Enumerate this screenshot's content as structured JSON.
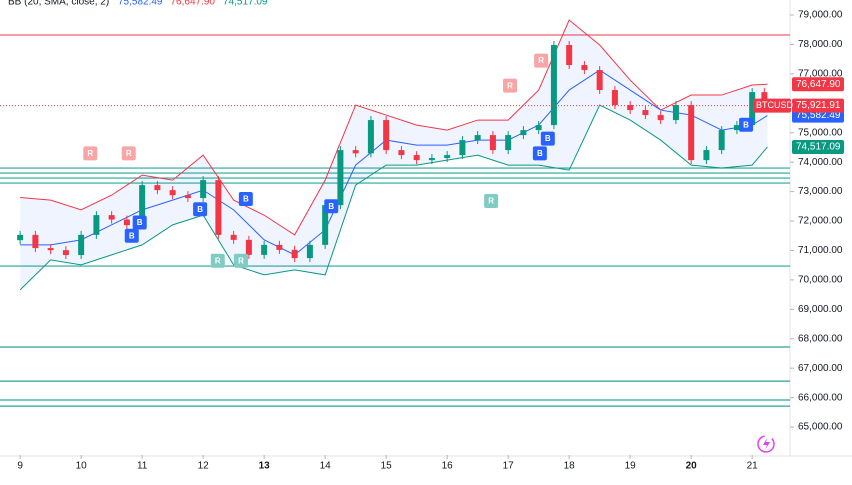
{
  "chart_data": {
    "type": "candlestick",
    "indicator": {
      "label": "BB (20, SMA, close, 2)",
      "values": [
        {
          "value": 75582.49,
          "label": "75,582.49",
          "color": "#2962ff"
        },
        {
          "value": 76647.9,
          "label": "76,647.90",
          "color": "#f23645"
        },
        {
          "value": 74517.09,
          "label": "74,517.09",
          "color": "#089981"
        }
      ]
    },
    "symbol": "BTCUSD",
    "last_price": {
      "value": 75921.91,
      "label": "75,921.91"
    },
    "up_color": "#089981",
    "down_color": "#f23645",
    "x": [
      8.75,
      9.0,
      9.25,
      9.5,
      9.75,
      10.0,
      10.25,
      10.5,
      10.75,
      11.0,
      11.25,
      11.5,
      11.75,
      12.0,
      12.25,
      12.5,
      12.75,
      13.0,
      13.25,
      13.5,
      13.75,
      14.0,
      14.25,
      14.5,
      14.75,
      15.0,
      15.25,
      15.5,
      15.75,
      16.0,
      16.25,
      16.5,
      16.75,
      17.0,
      17.25,
      17.5,
      17.75,
      18.0,
      18.25,
      18.5,
      18.75,
      19.0,
      19.25,
      19.5,
      19.75,
      20.0,
      20.25,
      20.5,
      20.75,
      21.0,
      21.2
    ],
    "close": [
      71350,
      71530,
      71080,
      71010,
      70845,
      71530,
      72200,
      72050,
      71860,
      73220,
      73050,
      72880,
      72780,
      73390,
      71530,
      71360,
      70850,
      71190,
      71020,
      70740,
      71190,
      72540,
      74410,
      74300,
      75430,
      74410,
      74240,
      74070,
      74140,
      74240,
      74750,
      74920,
      74410,
      74920,
      75090,
      75260,
      77980,
      77300,
      77130,
      76450,
      75940,
      75770,
      75600,
      75430,
      75940,
      74070,
      74410,
      75090,
      75260,
      76380,
      75921.91
    ],
    "bands": {
      "x": [
        9,
        9.5,
        10,
        10.5,
        11,
        11.5,
        12,
        12.5,
        13,
        13.5,
        14,
        14.5,
        15,
        15.5,
        16,
        16.5,
        17,
        17.5,
        18,
        18.5,
        19,
        19.5,
        20,
        20.5,
        21,
        21.25
      ],
      "upper": [
        72800,
        72710,
        72380,
        72880,
        73560,
        73390,
        74240,
        72710,
        72200,
        71530,
        73390,
        75940,
        75600,
        75260,
        75090,
        75430,
        75430,
        76450,
        78830,
        77980,
        76790,
        75770,
        76280,
        76280,
        76620,
        76647.9
      ],
      "basis": [
        71190,
        71190,
        71360,
        71870,
        72380,
        72710,
        73050,
        72380,
        71360,
        70850,
        71700,
        73900,
        74750,
        74580,
        74580,
        74750,
        74750,
        75260,
        76450,
        77130,
        76450,
        75770,
        75600,
        75090,
        75260,
        75582.49
      ],
      "lower": [
        69660,
        70680,
        70510,
        70850,
        71190,
        71870,
        72200,
        70510,
        70170,
        70340,
        70170,
        73220,
        73900,
        73900,
        74070,
        74240,
        73900,
        73900,
        73730,
        75940,
        75430,
        74750,
        73900,
        73800,
        73900,
        74517.09
      ],
      "upper_color": "#f23645",
      "basis_color": "#2962ff",
      "lower_color": "#089981"
    },
    "levels": [
      73800,
      73630,
      73460,
      73290,
      70470,
      67720,
      66560,
      65920,
      65710
    ],
    "level_color": "#26a69a",
    "resistance": 78320,
    "resistance_color": "#f23645",
    "signals": [
      {
        "label": "R",
        "x": 10.15,
        "y": 74300,
        "color": "#f7a5a5"
      },
      {
        "label": "R",
        "x": 10.78,
        "y": 74300,
        "color": "#f7a5a5"
      },
      {
        "label": "R",
        "x": 17.03,
        "y": 76600,
        "color": "#f7a5a5"
      },
      {
        "label": "R",
        "x": 17.54,
        "y": 77450,
        "color": "#f7a5a5"
      },
      {
        "label": "B",
        "x": 10.83,
        "y": 71500,
        "color": "#2962ff"
      },
      {
        "label": "B",
        "x": 10.96,
        "y": 71950,
        "color": "#2962ff"
      },
      {
        "label": "B",
        "x": 11.95,
        "y": 72400,
        "color": "#2962ff"
      },
      {
        "label": "B",
        "x": 12.7,
        "y": 72750,
        "color": "#2962ff"
      },
      {
        "label": "R",
        "x": 12.24,
        "y": 70650,
        "color": "#80cbc4"
      },
      {
        "label": "R",
        "x": 12.62,
        "y": 70650,
        "color": "#80cbc4"
      },
      {
        "label": "B",
        "x": 14.1,
        "y": 72500,
        "color": "#2962ff"
      },
      {
        "label": "R",
        "x": 16.72,
        "y": 72680,
        "color": "#80cbc4"
      },
      {
        "label": "B",
        "x": 17.52,
        "y": 74300,
        "color": "#2962ff"
      },
      {
        "label": "B",
        "x": 17.65,
        "y": 74800,
        "color": "#2962ff"
      },
      {
        "label": "B",
        "x": 20.9,
        "y": 75270,
        "color": "#2962ff"
      }
    ],
    "xlim": [
      8.67,
      21.62
    ],
    "xticks": [
      9,
      10,
      11,
      12,
      13,
      14,
      15,
      16,
      17,
      18,
      19,
      20,
      21
    ],
    "bold_xticks": [
      13,
      20
    ],
    "ylim": [
      64050,
      79510
    ],
    "yticks": [
      {
        "value": 65000,
        "label": "65,000.00"
      },
      {
        "value": 66000,
        "label": "66,000.00"
      },
      {
        "value": 67000,
        "label": "67,000.00"
      },
      {
        "value": 68000,
        "label": "68,000.00"
      },
      {
        "value": 69000,
        "label": "69,000.00"
      },
      {
        "value": 70000,
        "label": "70,000.00"
      },
      {
        "value": 71000,
        "label": "71,000.00"
      },
      {
        "value": 72000,
        "label": "72,000.00"
      },
      {
        "value": 73000,
        "label": "73,000.00"
      },
      {
        "value": 74000,
        "label": "74,000.00"
      },
      {
        "value": 75000,
        "label": "75,000.00"
      },
      {
        "value": 76000,
        "label": "76,000.00"
      },
      {
        "value": 77000,
        "label": "77,000.00"
      },
      {
        "value": 78000,
        "label": "78,000.00"
      },
      {
        "value": 79000,
        "label": "79,000.00"
      }
    ]
  }
}
